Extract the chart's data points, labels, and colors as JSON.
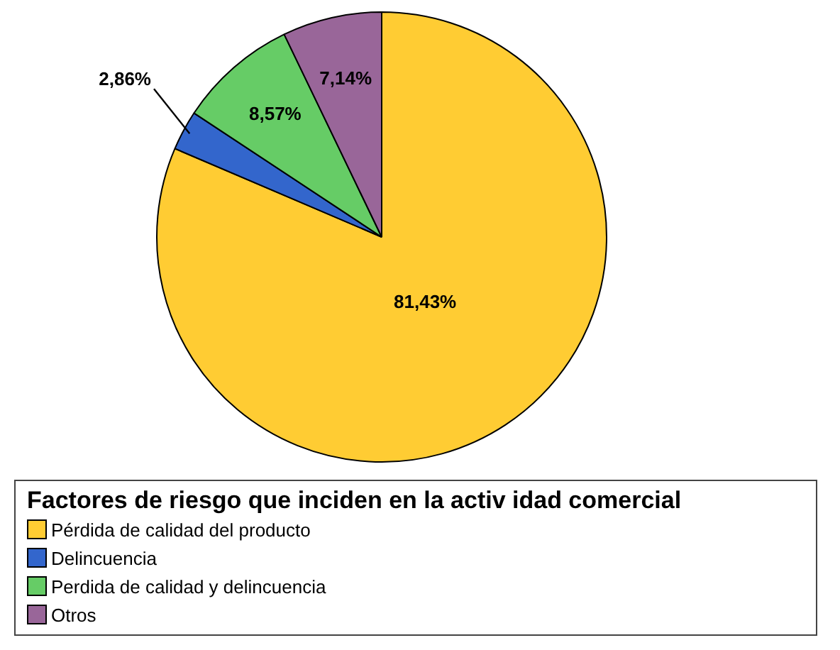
{
  "chart_data": {
    "type": "pie",
    "legend_title": "Factores de riesgo que inciden en la activ idad comercial",
    "categories": [
      "Pérdida de calidad del producto",
      "Delincuencia",
      "Perdida de calidad y delincuencia",
      "Otros"
    ],
    "values": [
      81.43,
      2.86,
      8.57,
      7.14
    ],
    "value_labels": [
      "81,43%",
      "2,86%",
      "8,57%",
      "7,14%"
    ],
    "colors": [
      "#ffcc33",
      "#3366cc",
      "#66cc66",
      "#996699"
    ],
    "legend": "bottom"
  }
}
